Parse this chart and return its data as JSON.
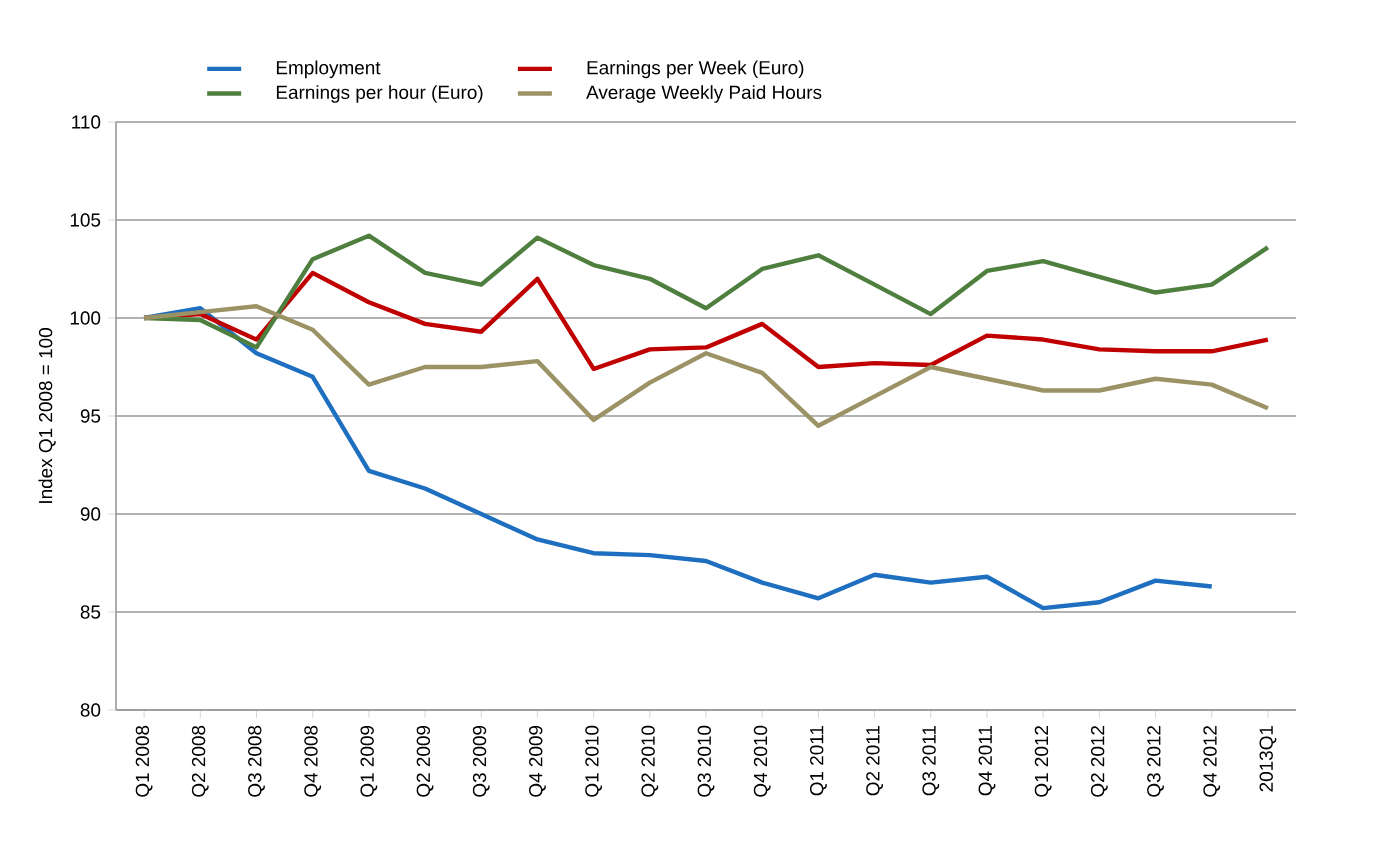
{
  "chart_data": {
    "type": "line",
    "ylabel": "Index Q1 2008 = 100",
    "categories": [
      "Q1 2008",
      "Q2 2008",
      "Q3 2008",
      "Q4 2008",
      "Q1 2009",
      "Q2 2009",
      "Q3 2009",
      "Q4 2009",
      "Q1 2010",
      "Q2 2010",
      "Q3 2010",
      "Q4 2010",
      "Q1 2011",
      "Q2 2011",
      "Q3 2011",
      "Q4 2011",
      "Q1 2012",
      "Q2 2012",
      "Q3 2012",
      "Q4 2012",
      "2013Q1"
    ],
    "series": [
      {
        "name": "Employment",
        "color": "#1f6fc0",
        "values": [
          100,
          100.5,
          98.2,
          97.0,
          92.2,
          91.3,
          90.0,
          88.7,
          88.0,
          87.9,
          87.6,
          86.5,
          85.7,
          86.9,
          86.5,
          86.8,
          85.2,
          85.5,
          86.6,
          86.3,
          null
        ]
      },
      {
        "name": "Earnings per Week (Euro)",
        "color": "#c00000",
        "values": [
          100,
          100.2,
          98.9,
          102.3,
          100.8,
          99.7,
          99.3,
          102.0,
          97.4,
          98.4,
          98.5,
          99.7,
          97.5,
          97.7,
          97.6,
          99.1,
          98.9,
          98.4,
          98.3,
          98.3,
          98.9
        ]
      },
      {
        "name": "Earnings per hour (Euro)",
        "color": "#4f7f3f",
        "values": [
          100,
          99.9,
          98.5,
          103.0,
          104.2,
          102.3,
          101.7,
          104.1,
          102.7,
          102.0,
          100.5,
          102.5,
          103.2,
          101.7,
          100.2,
          102.4,
          102.9,
          102.1,
          101.3,
          101.7,
          103.6
        ]
      },
      {
        "name": "Average Weekly Paid Hours",
        "color": "#9b9365",
        "values": [
          100,
          100.3,
          100.6,
          99.4,
          96.6,
          97.5,
          97.5,
          97.8,
          94.8,
          96.7,
          98.2,
          97.2,
          94.5,
          96.0,
          97.5,
          96.9,
          96.3,
          96.3,
          96.9,
          96.6,
          95.4
        ]
      }
    ],
    "ylim": [
      80,
      110
    ],
    "yticks": [
      80,
      85,
      90,
      95,
      100,
      105,
      110
    ],
    "grid": "y",
    "legend": "top",
    "marker": "none"
  }
}
